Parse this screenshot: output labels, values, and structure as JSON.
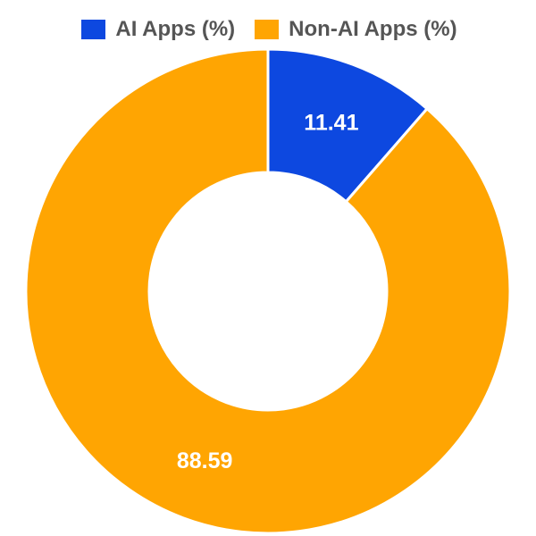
{
  "chart_data": {
    "type": "pie",
    "subtype": "doughnut",
    "labels": [
      "AI Apps (%)",
      "Non-AI Apps (%)"
    ],
    "values": [
      11.41,
      88.59
    ],
    "value_labels": [
      "11.41",
      "88.59"
    ],
    "colors": [
      "#0d48e0",
      "#ffa502"
    ],
    "border_color": "#ffffff",
    "datalabel_color": "#ffffff",
    "legend": {
      "position": "top",
      "text_color": "#555555"
    },
    "start_angle_deg": -90,
    "cutout_ratio": 0.49
  }
}
